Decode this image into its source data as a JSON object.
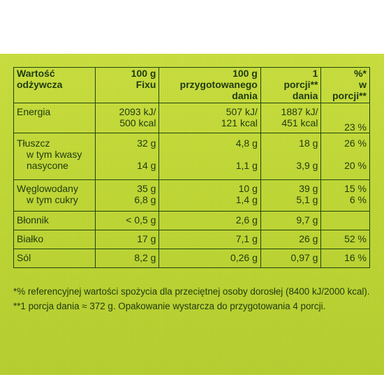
{
  "header": {
    "col1": [
      "Wartość",
      "odżywcza"
    ],
    "col2": [
      "100 g",
      "Fixu"
    ],
    "col3": [
      "100 g",
      "przygotowanego",
      "dania"
    ],
    "col4": [
      "1",
      "porcji**",
      "dania"
    ],
    "col5": [
      "%*",
      "w",
      "porcji**"
    ]
  },
  "rows": {
    "energia": {
      "label": "Energia",
      "v1": [
        "2093 kJ/",
        "500 kcal"
      ],
      "v2": [
        "507 kJ/",
        "121 kcal"
      ],
      "v3": [
        "1887 kJ/",
        "451 kcal"
      ],
      "pct": "23 %"
    },
    "tluszcz": {
      "label": "Tłuszcz",
      "sub1": "w tym kwasy",
      "sub2": "nasycone",
      "v1a": "32 g",
      "v1b": "14 g",
      "v2a": "4,8 g",
      "v2b": "1,1 g",
      "v3a": "18 g",
      "v3b": "3,9 g",
      "pcta": "26 %",
      "pctb": "20 %"
    },
    "weglowodany": {
      "label": "Węglowodany",
      "sub": "w tym cukry",
      "v1a": "35 g",
      "v1b": "6,8 g",
      "v2a": "10 g",
      "v2b": "1,4 g",
      "v3a": "39 g",
      "v3b": "5,1 g",
      "pcta": "15 %",
      "pctb": "6 %"
    },
    "blonnik": {
      "label": "Błonnik",
      "v1": "< 0,5 g",
      "v2": "2,6 g",
      "v3": "9,7 g",
      "pct": ""
    },
    "bialko": {
      "label": "Białko",
      "v1": "17 g",
      "v2": "7,1 g",
      "v3": "26 g",
      "pct": "52 %"
    },
    "sol": {
      "label": "Sól",
      "v1": "8,2 g",
      "v2": "0,26 g",
      "v3": "0,97 g",
      "pct": "16 %"
    }
  },
  "footnotes": {
    "f1": "*% referencyjnej wartości spożycia dla przeciętnej osoby dorosłej (8400 kJ/2000 kcal).",
    "f2": "**1 porcja dania ≈ 372 g. Opakowanie wystarcza do przygotowania 4 porcji."
  }
}
